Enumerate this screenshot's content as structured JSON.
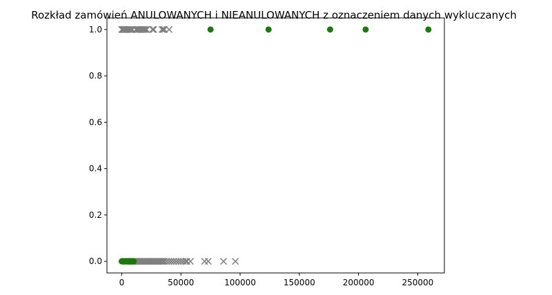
{
  "chart_data": {
    "type": "scatter",
    "title": "Rozkład zamówień ANULOWANYCH i NIEANULOWANYCH z oznaczeniem danych wykluczanych",
    "xlabel": "",
    "ylabel": "",
    "xlim": [
      -12500,
      272500
    ],
    "ylim": [
      -0.05,
      1.05
    ],
    "x_ticks": [
      0,
      50000,
      100000,
      150000,
      200000,
      250000
    ],
    "x_tick_labels": [
      "0",
      "50000",
      "100000",
      "150000",
      "200000",
      "250000"
    ],
    "y_ticks": [
      0.0,
      0.2,
      0.4,
      0.6,
      0.8,
      1.0
    ],
    "y_tick_labels": [
      "0.0",
      "0.2",
      "0.4",
      "0.6",
      "0.8",
      "1.0"
    ],
    "grid": false,
    "series": [
      {
        "marker": "x",
        "color": "#808080",
        "points": [
          [
            0,
            1
          ],
          [
            500,
            1
          ],
          [
            1000,
            1
          ],
          [
            1500,
            1
          ],
          [
            2000,
            1
          ],
          [
            2500,
            1
          ],
          [
            3000,
            1
          ],
          [
            3500,
            1
          ],
          [
            4000,
            1
          ],
          [
            5000,
            1
          ],
          [
            6000,
            1
          ],
          [
            7000,
            1
          ],
          [
            8000,
            1
          ],
          [
            9000,
            1
          ],
          [
            12000,
            1
          ],
          [
            13000,
            1
          ],
          [
            14000,
            1
          ],
          [
            15000,
            1
          ],
          [
            16000,
            1
          ],
          [
            17000,
            1
          ],
          [
            18000,
            1
          ],
          [
            19000,
            1
          ],
          [
            20000,
            1
          ],
          [
            21000,
            1
          ],
          [
            26000,
            1
          ],
          [
            27000,
            1
          ],
          [
            34000,
            1
          ],
          [
            35000,
            1
          ],
          [
            36000,
            1
          ],
          [
            40000,
            1
          ],
          [
            3000,
            0
          ],
          [
            4000,
            0
          ],
          [
            5000,
            0
          ],
          [
            6000,
            0
          ],
          [
            7000,
            0
          ],
          [
            8000,
            0
          ],
          [
            9000,
            0
          ],
          [
            10000,
            0
          ],
          [
            11000,
            0
          ],
          [
            12000,
            0
          ],
          [
            13000,
            0
          ],
          [
            14000,
            0
          ],
          [
            15000,
            0
          ],
          [
            16000,
            0
          ],
          [
            17000,
            0
          ],
          [
            18000,
            0
          ],
          [
            19000,
            0
          ],
          [
            20000,
            0
          ],
          [
            21000,
            0
          ],
          [
            22000,
            0
          ],
          [
            23000,
            0
          ],
          [
            24000,
            0
          ],
          [
            25000,
            0
          ],
          [
            26000,
            0
          ],
          [
            27000,
            0
          ],
          [
            28000,
            0
          ],
          [
            29000,
            0
          ],
          [
            30000,
            0
          ],
          [
            31000,
            0
          ],
          [
            32000,
            0
          ],
          [
            33000,
            0
          ],
          [
            34000,
            0
          ],
          [
            35000,
            0
          ],
          [
            36000,
            0
          ],
          [
            38000,
            0
          ],
          [
            40000,
            0
          ],
          [
            42000,
            0
          ],
          [
            44000,
            0
          ],
          [
            46000,
            0
          ],
          [
            48000,
            0
          ],
          [
            50000,
            0
          ],
          [
            52000,
            0
          ],
          [
            54000,
            0
          ],
          [
            55000,
            0
          ],
          [
            58000,
            0
          ],
          [
            70000,
            0
          ],
          [
            73000,
            0
          ],
          [
            86000,
            0
          ],
          [
            96000,
            0
          ]
        ]
      },
      {
        "marker": "o",
        "color": "#1a7a0a",
        "points": [
          [
            75000,
            1
          ],
          [
            124000,
            1
          ],
          [
            176000,
            1
          ],
          [
            206000,
            1
          ],
          [
            259000,
            1
          ],
          [
            0,
            0
          ],
          [
            500,
            0
          ],
          [
            1000,
            0
          ],
          [
            1500,
            0
          ],
          [
            2000,
            0
          ],
          [
            2500,
            0
          ],
          [
            3000,
            0
          ],
          [
            3500,
            0
          ],
          [
            4000,
            0
          ],
          [
            4500,
            0
          ],
          [
            5000,
            0
          ],
          [
            5500,
            0
          ],
          [
            6000,
            0
          ],
          [
            6500,
            0
          ],
          [
            7000,
            0
          ],
          [
            7500,
            0
          ],
          [
            8000,
            0
          ],
          [
            8500,
            0
          ],
          [
            9000,
            0
          ],
          [
            9500,
            0
          ],
          [
            10000,
            0
          ]
        ]
      }
    ]
  }
}
